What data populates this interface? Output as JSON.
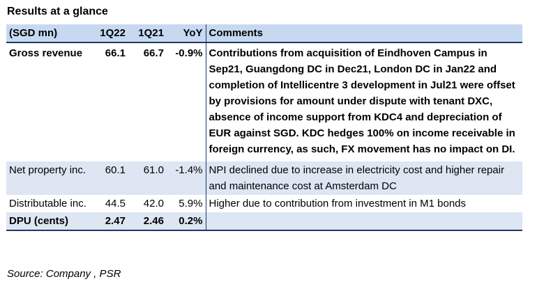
{
  "title": "Results at a glance",
  "headers": [
    "(SGD mn)",
    "1Q22",
    "1Q21",
    "YoY",
    "Comments"
  ],
  "rows": [
    {
      "label": "Gross revenue",
      "q22": "66.1",
      "q21": "66.7",
      "yoy": "-0.9%",
      "comment": "Contributions from acquisition of Eindhoven Campus in Sep21, Guangdong DC in Dec21, London DC in Jan22 and completion of Intellicentre 3 development in Jul21 were offset by provisions for amount under dispute with tenant DXC, absence of income support from KDC4 and depreciation of EUR against SGD. KDC hedges 100% on income receivable in foreign currency, as such, FX movement has no impact on DI."
    },
    {
      "label": "Net property inc.",
      "q22": "60.1",
      "q21": "61.0",
      "yoy": "-1.4%",
      "comment": "NPI declined due to increase in electricity cost and higher repair and maintenance cost at Amsterdam DC"
    },
    {
      "label": "Distributable inc.",
      "q22": "44.5",
      "q21": "42.0",
      "yoy": "5.9%",
      "comment": "Higher due to contribution from investment in M1 bonds"
    },
    {
      "label": "DPU (cents)",
      "q22": "2.47",
      "q21": "2.46",
      "yoy": "0.2%",
      "comment": ""
    }
  ],
  "source": "Source: Company , PSR"
}
